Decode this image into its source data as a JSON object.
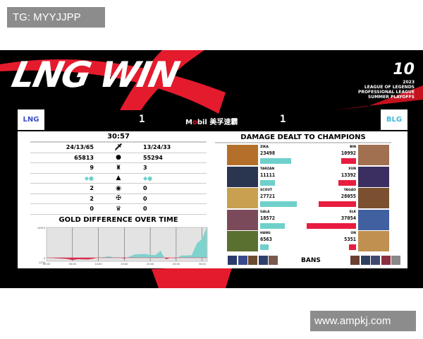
{
  "watermark_left": "TG: MYYJJPP",
  "watermark_right": "www.ampkj.com",
  "banner": {
    "title": "LNG WIN",
    "event_logo": "10",
    "event_lines": [
      "2023",
      "LEAGUE OF LEGENDS",
      "PROFESSIONAL LEAGUE",
      "SUMMER PLAYOFFS"
    ]
  },
  "teams": {
    "left": {
      "logo": "LNG",
      "score": "1"
    },
    "right": {
      "logo": "BLG",
      "score": "1"
    },
    "sponsor_a": "M",
    "sponsor_o": "o",
    "sponsor_b": "bil",
    "sponsor_cn": "美孚速霸"
  },
  "stats": {
    "game_time": "30:57",
    "rows": [
      {
        "icon": "sword-icon",
        "glyph": "🗡",
        "left": "24/13/65",
        "right": "13/24/33"
      },
      {
        "icon": "gold-icon",
        "glyph": "●",
        "left": "65813",
        "right": "55294"
      },
      {
        "icon": "tower-icon",
        "glyph": "♜",
        "left": "9",
        "right": "3"
      },
      {
        "icon": "dragon-icon",
        "glyph": "▲",
        "left": "◆●",
        "right": "◆●"
      },
      {
        "icon": "baron-icon",
        "glyph": "◉",
        "left": "2",
        "right": "0"
      },
      {
        "icon": "herald-icon",
        "glyph": "✠",
        "left": "2",
        "right": "0"
      },
      {
        "icon": "inhibitor-icon",
        "glyph": "♛",
        "left": "0",
        "right": "0"
      }
    ]
  },
  "chart_data": {
    "type": "area",
    "title": "GOLD DIFFERENCE OVER TIME",
    "ylim": [
      -1233,
      10519
    ],
    "yticks": [
      "10519",
      "0",
      "-1233"
    ],
    "xticks": [
      "00:00",
      "05:00",
      "10:00",
      "15:00",
      "20:00",
      "25:00",
      "30:00"
    ],
    "xlim": [
      0,
      31
    ],
    "x": [
      0,
      2,
      4,
      5,
      6,
      8,
      9,
      10,
      11,
      12,
      13,
      14,
      15,
      16,
      17,
      19,
      20,
      21,
      22,
      22.5,
      23,
      24,
      25,
      26,
      27,
      28,
      29,
      30,
      30.9
    ],
    "y": [
      0,
      -200,
      -400,
      -800,
      -500,
      -600,
      -300,
      100,
      200,
      500,
      100,
      200,
      -300,
      400,
      1200,
      1300,
      1000,
      900,
      2500,
      700,
      -500,
      0,
      -200,
      800,
      800,
      900,
      5000,
      6500,
      10519
    ],
    "colors": {
      "positive": "#7fd3ce",
      "negative": "#d62e4f"
    }
  },
  "damage": {
    "title": "DAMAGE DEALT TO CHAMPIONS",
    "max": 37054,
    "left_color": "#6fd0cb",
    "right_color": "#e81c3f",
    "left": [
      {
        "name": "ZIKA",
        "value": 23498
      },
      {
        "name": "TARZAN",
        "value": 11111
      },
      {
        "name": "SCOUT",
        "value": 27721
      },
      {
        "name": "GALA",
        "value": 18572
      },
      {
        "name": "HANG",
        "value": 6563
      }
    ],
    "right": [
      {
        "name": "BIN",
        "value": 10992
      },
      {
        "name": "XUN",
        "value": 13392
      },
      {
        "name": "YAGAO",
        "value": 28055
      },
      {
        "name": "ELK",
        "value": 37054
      },
      {
        "name": "ON",
        "value": 5351
      }
    ]
  },
  "bans_label": "BANS"
}
